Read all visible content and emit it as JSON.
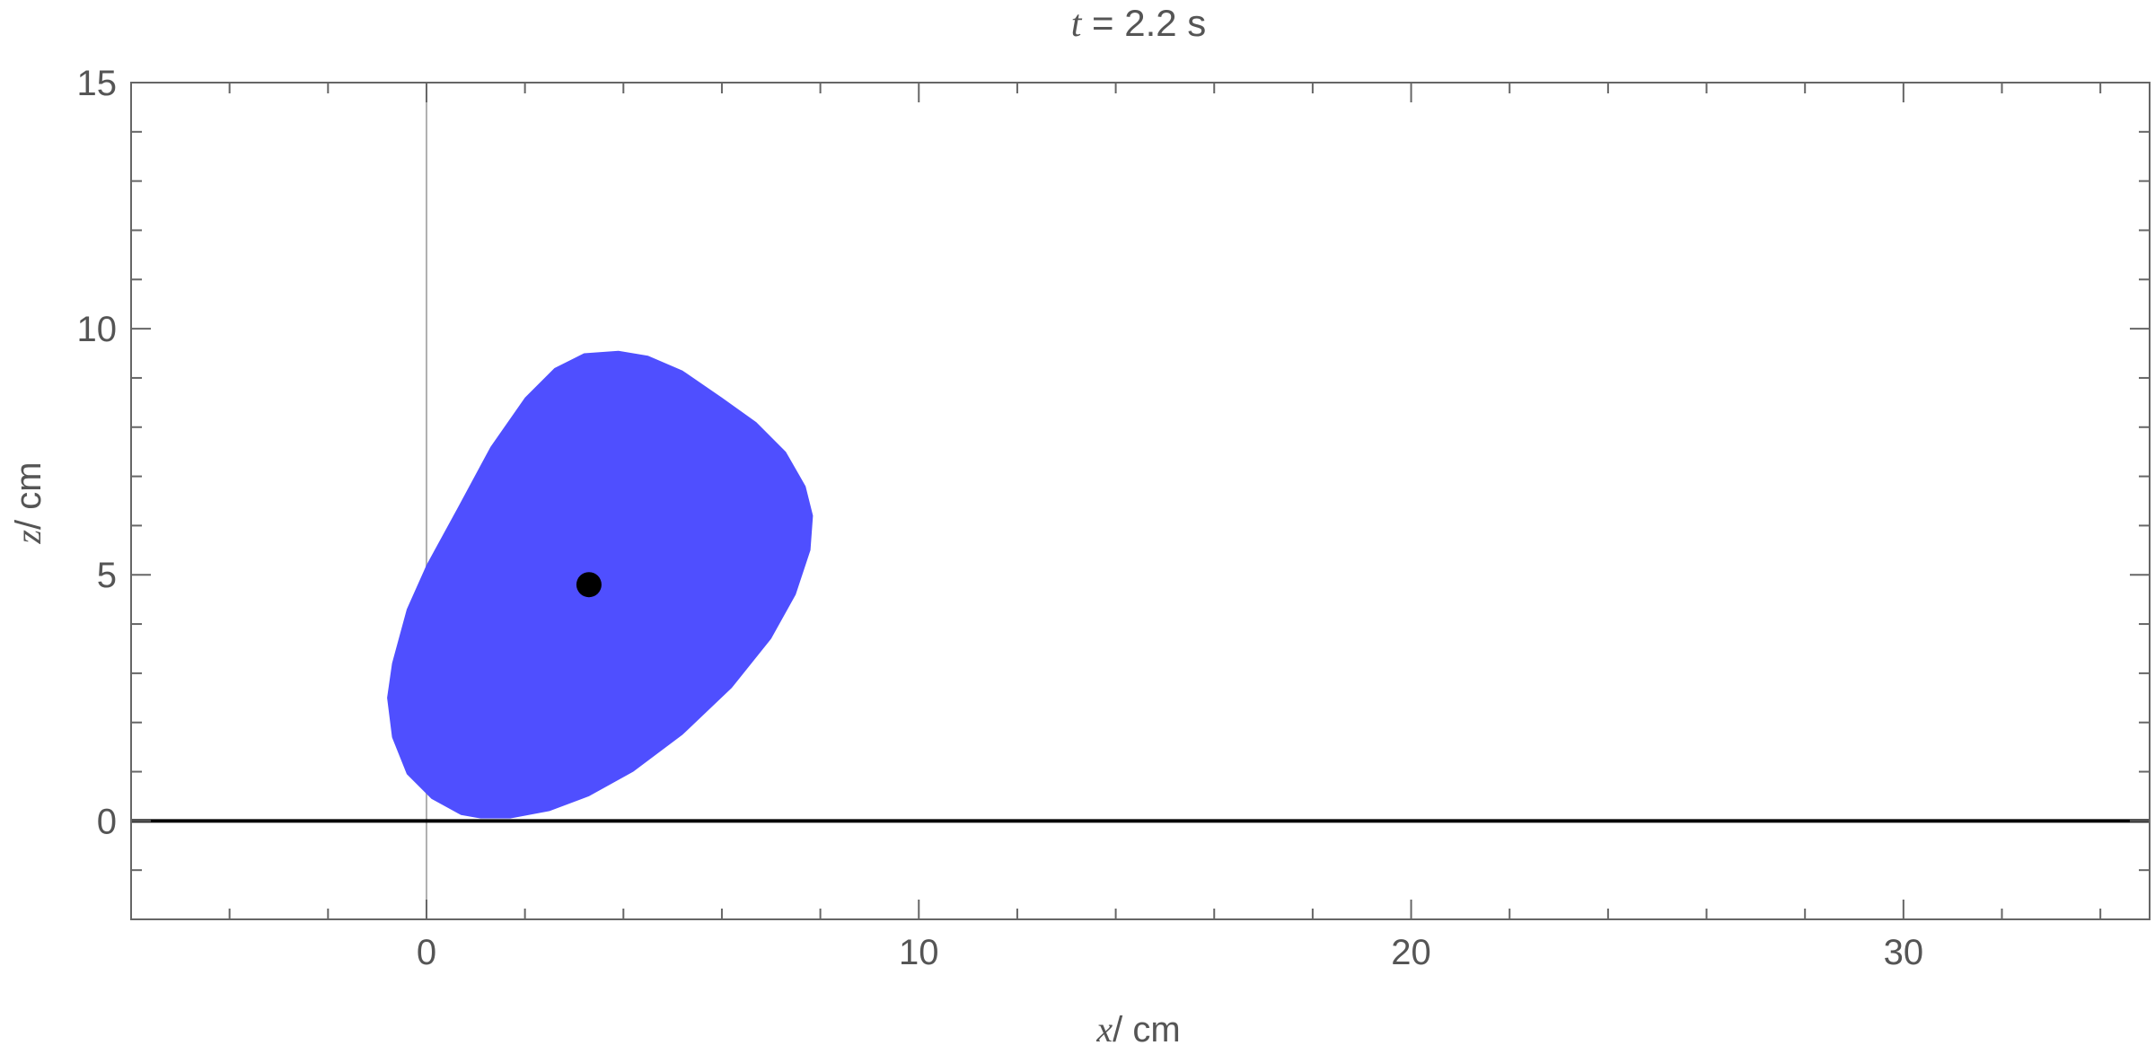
{
  "chart_data": {
    "type": "area",
    "title": {
      "var": "t",
      "eq": " = 2.2 s"
    },
    "xlabel": {
      "var": "x",
      "unit": "/ cm"
    },
    "ylabel": {
      "var": "z",
      "unit": "/ cm"
    },
    "xlim": [
      -6,
      35
    ],
    "ylim": [
      -2,
      15
    ],
    "x_major_ticks": [
      0,
      10,
      20,
      30
    ],
    "y_major_ticks": [
      0,
      5,
      10,
      15
    ],
    "x_tick_labels": [
      "0",
      "10",
      "20",
      "30"
    ],
    "y_tick_labels": [
      "0",
      "5",
      "10",
      "15"
    ],
    "x_minor_step": 2,
    "y_minor_step": 1,
    "grid": false,
    "ground_line_z": 0,
    "reference_line_x": 0,
    "blob": {
      "color": "#4f4fff",
      "points": [
        [
          1.1,
          0.05
        ],
        [
          1.7,
          0.05
        ],
        [
          2.5,
          0.2
        ],
        [
          3.3,
          0.5
        ],
        [
          4.2,
          1.0
        ],
        [
          5.2,
          1.75
        ],
        [
          6.2,
          2.7
        ],
        [
          7.0,
          3.7
        ],
        [
          7.5,
          4.6
        ],
        [
          7.8,
          5.5
        ],
        [
          7.85,
          6.2
        ],
        [
          7.7,
          6.8
        ],
        [
          7.3,
          7.5
        ],
        [
          6.7,
          8.1
        ],
        [
          6.0,
          8.6
        ],
        [
          5.2,
          9.15
        ],
        [
          4.5,
          9.45
        ],
        [
          3.9,
          9.55
        ],
        [
          3.2,
          9.5
        ],
        [
          2.6,
          9.2
        ],
        [
          2.0,
          8.6
        ],
        [
          1.3,
          7.6
        ],
        [
          0.6,
          6.3
        ],
        [
          0.0,
          5.2
        ],
        [
          -0.4,
          4.3
        ],
        [
          -0.7,
          3.2
        ],
        [
          -0.8,
          2.5
        ],
        [
          -0.7,
          1.7
        ],
        [
          -0.4,
          0.95
        ],
        [
          0.1,
          0.45
        ],
        [
          0.7,
          0.12
        ]
      ]
    },
    "point": {
      "x": 3.3,
      "z": 4.8,
      "color": "#000000"
    }
  }
}
